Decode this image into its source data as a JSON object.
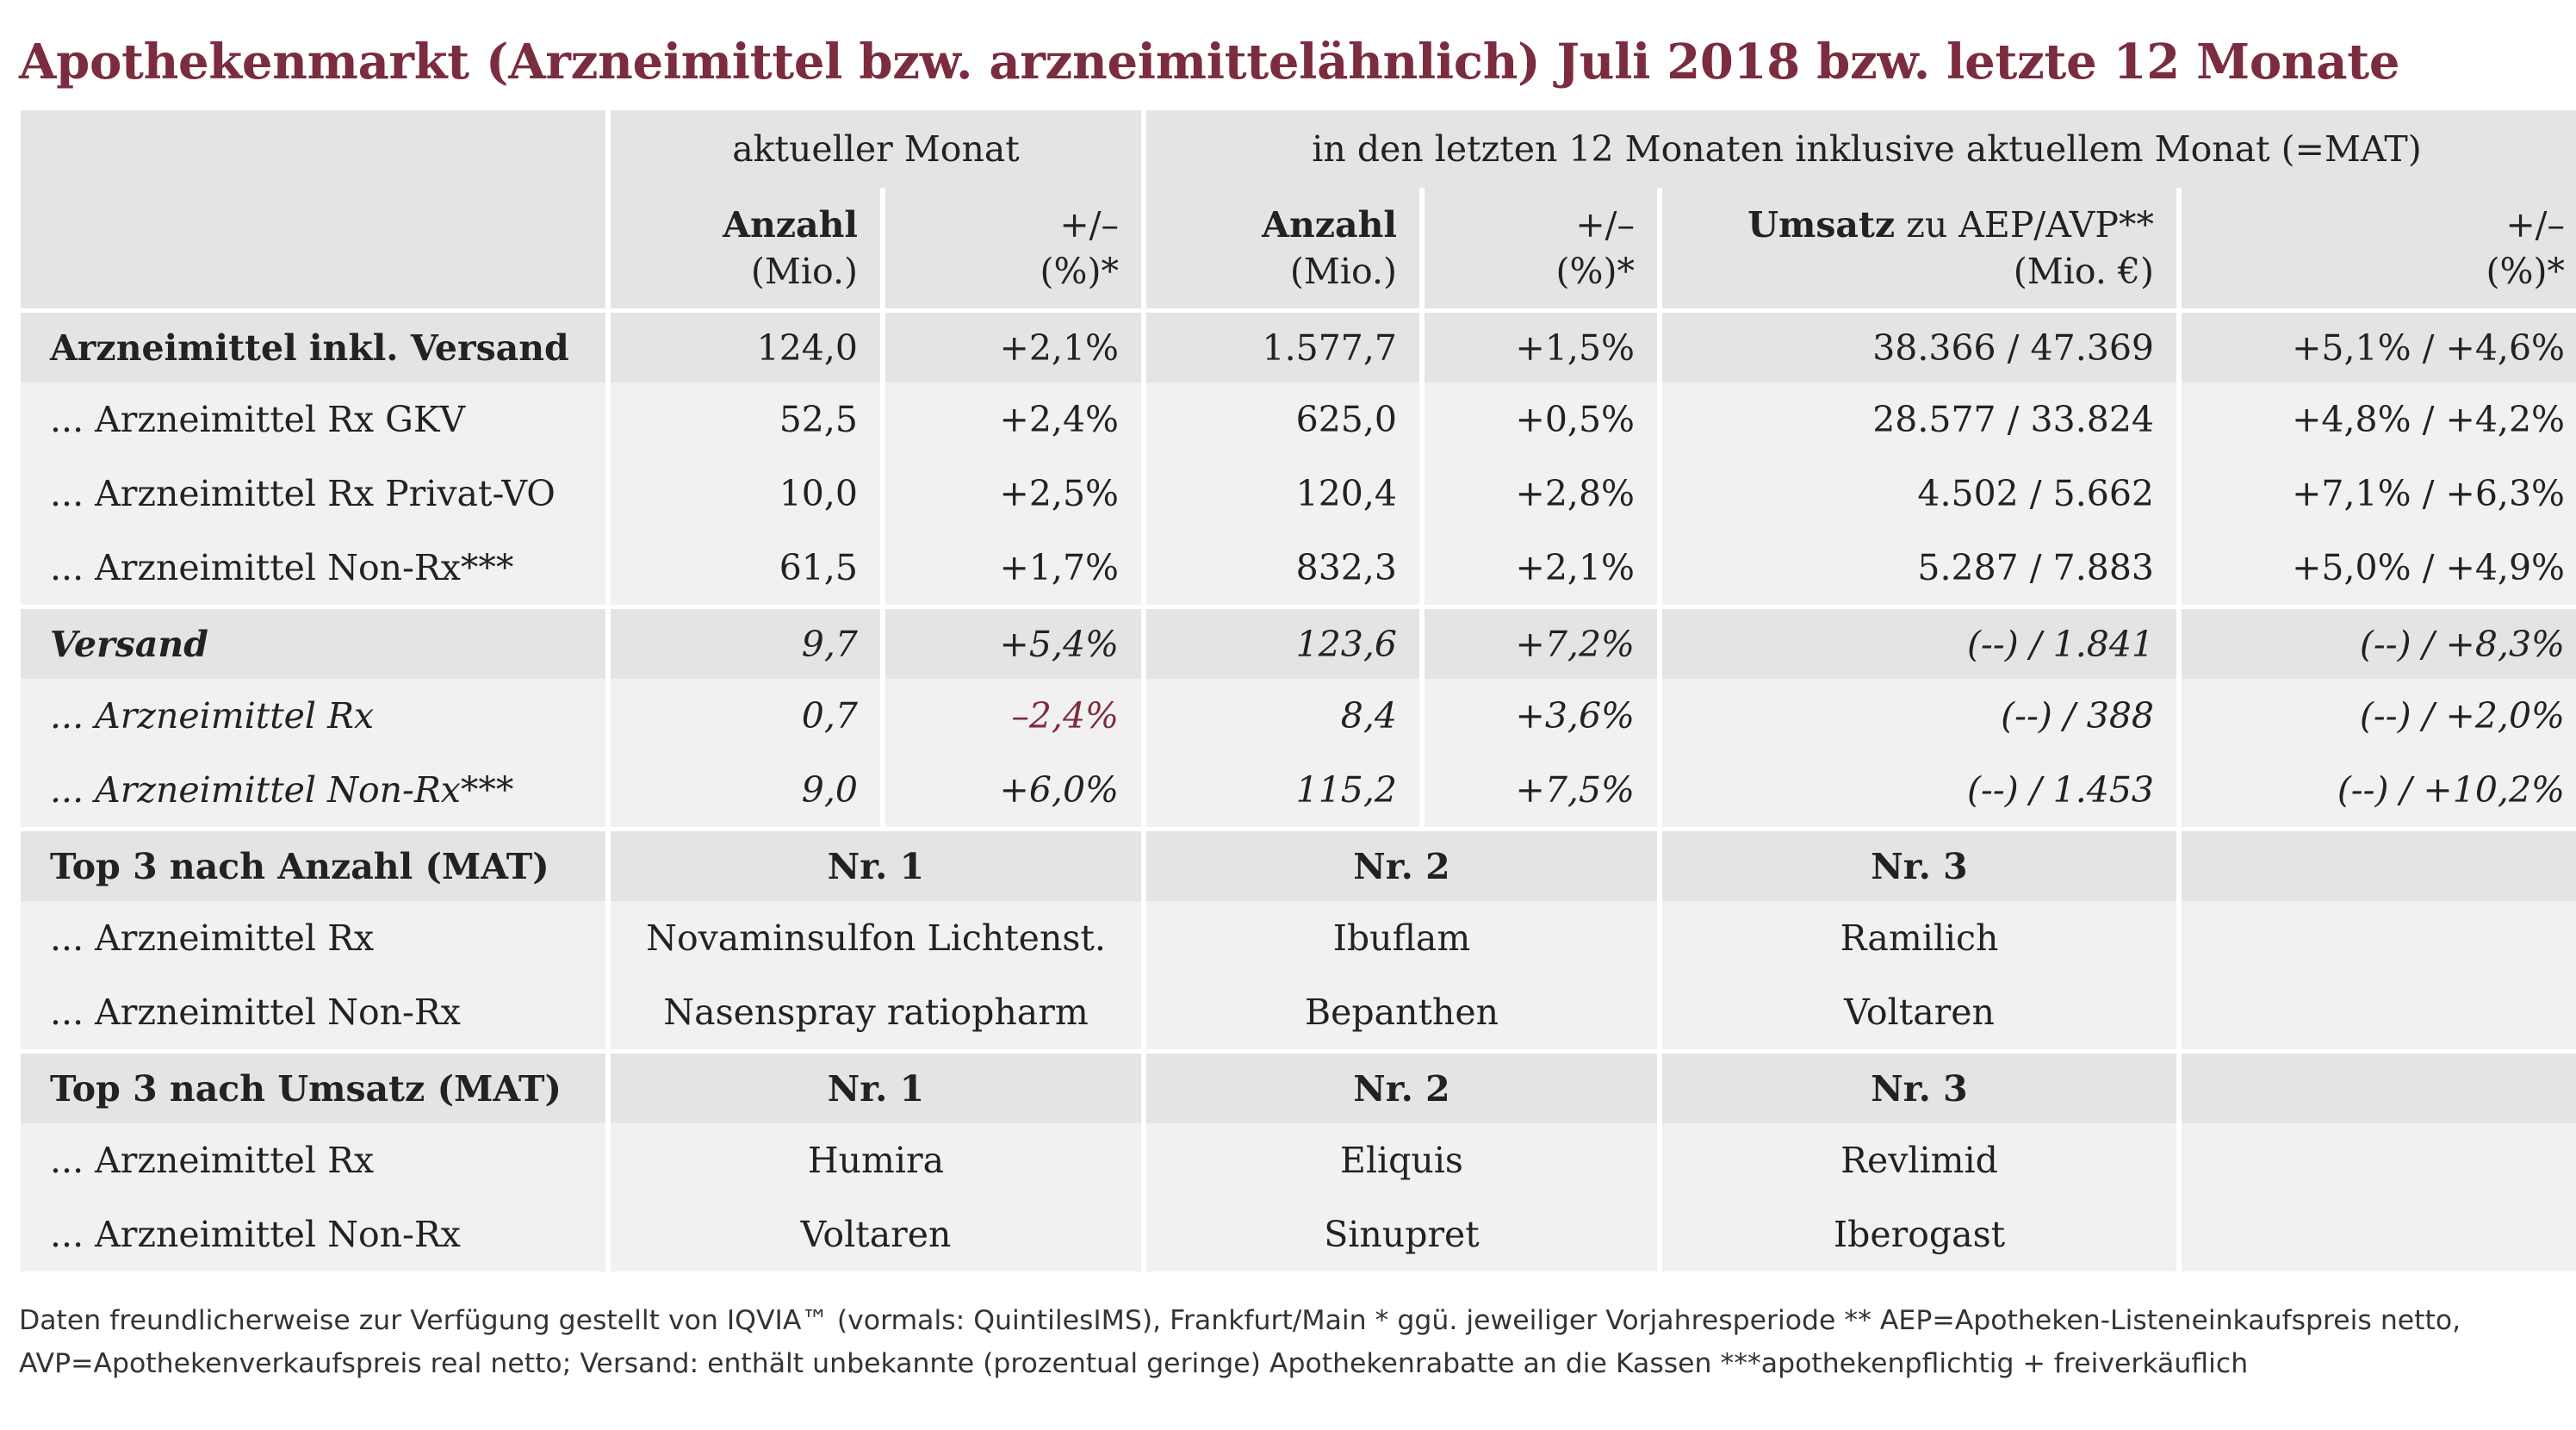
{
  "title": "Apothekenmarkt (Arzneimittel bzw. arzneimittelähnlich) Juli 2018 bzw. letzte 12 Monate",
  "header": {
    "group_current": "aktueller Monat",
    "group_mat": "in den letzten 12 Monaten inklusive aktuellem Monat (=MAT)",
    "anzahl": "Anzahl",
    "mio": "(Mio.)",
    "plusminus": "+/–",
    "pct": "(%)*",
    "umsatz_bold": "Umsatz",
    "umsatz_rest": " zu AEP/AVP**",
    "mio_eur": "(Mio. €)"
  },
  "rows": [
    {
      "label": "Arzneimittel inkl. Versand",
      "cur_count": "124,0",
      "cur_change": "+2,1%",
      "mat_count": "1.577,7",
      "mat_change": "+1,5%",
      "revenue": "38.366 / 47.369",
      "rev_change": "+5,1% / +4,6%"
    },
    {
      "label": "... Arzneimittel Rx GKV",
      "cur_count": "52,5",
      "cur_change": "+2,4%",
      "mat_count": "625,0",
      "mat_change": "+0,5%",
      "revenue": "28.577 / 33.824",
      "rev_change": "+4,8% / +4,2%"
    },
    {
      "label": "... Arzneimittel Rx Privat-VO",
      "cur_count": "10,0",
      "cur_change": "+2,5%",
      "mat_count": "120,4",
      "mat_change": "+2,8%",
      "revenue": "4.502 / 5.662",
      "rev_change": "+7,1% / +6,3%"
    },
    {
      "label": "... Arzneimittel Non-Rx***",
      "cur_count": "61,5",
      "cur_change": "+1,7%",
      "mat_count": "832,3",
      "mat_change": "+2,1%",
      "revenue": "5.287 / 7.883",
      "rev_change": "+5,0% / +4,9%"
    },
    {
      "label": "Versand",
      "cur_count": "9,7",
      "cur_change": "+5,4%",
      "mat_count": "123,6",
      "mat_change": "+7,2%",
      "revenue": "(--) / 1.841",
      "rev_change": "(--) / +8,3%"
    },
    {
      "label": "... Arzneimittel Rx",
      "cur_count": "0,7",
      "cur_change": "–2,4%",
      "mat_count": "8,4",
      "mat_change": "+3,6%",
      "revenue": "(--) / 388",
      "rev_change": "(--) / +2,0%"
    },
    {
      "label": "... Arzneimittel Non-Rx***",
      "cur_count": "9,0",
      "cur_change": "+6,0%",
      "mat_count": "115,2",
      "mat_change": "+7,5%",
      "revenue": "(--) / 1.453",
      "rev_change": "(--) / +10,2%"
    }
  ],
  "top_count": {
    "label": "Top 3 nach Anzahl (MAT)",
    "nr1": "Nr. 1",
    "nr2": "Nr. 2",
    "nr3": "Nr. 3",
    "rx": {
      "label": "... Arzneimittel Rx",
      "n1": "Novaminsulfon Lichtenst.",
      "n2": "Ibuflam",
      "n3": "Ramilich"
    },
    "nonrx": {
      "label": "... Arzneimittel Non-Rx",
      "n1": "Nasenspray ratiopharm",
      "n2": "Bepanthen",
      "n3": "Voltaren"
    }
  },
  "top_revenue": {
    "label": "Top 3 nach Umsatz (MAT)",
    "nr1": "Nr. 1",
    "nr2": "Nr. 2",
    "nr3": "Nr. 3",
    "rx": {
      "label": "... Arzneimittel Rx",
      "n1": "Humira",
      "n2": "Eliquis",
      "n3": "Revlimid"
    },
    "nonrx": {
      "label": "... Arzneimittel Non-Rx",
      "n1": "Voltaren",
      "n2": "Sinupret",
      "n3": "Iberogast"
    }
  },
  "footnote": {
    "line1": "Daten freundlicherweise zur Verfügung gestellt von IQVIA™ (vormals: QuintilesIMS), Frankfurt/Main  * ggü. jeweiliger Vorjahresperiode  ** AEP=Apotheken-Listeneinkaufspreis netto,",
    "line2": "AVP=Apothekenverkaufspreis real netto; Versand: enthält unbekannte (prozentual geringe) Apothekenrabatte an die Kassen   ***apothekenpflichtig + freiverkäuflich"
  },
  "colors": {
    "title": "#7b2c3f",
    "negative": "#7b2c3f",
    "band_dark": "#e4e4e4",
    "band_light": "#f1f1f1"
  }
}
